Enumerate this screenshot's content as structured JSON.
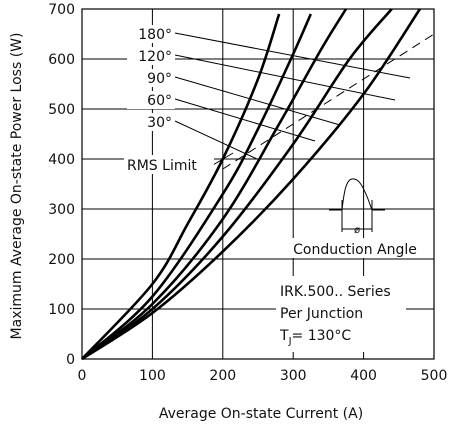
{
  "chart_data": {
    "type": "line",
    "xlabel": "Average On-state Current (A)",
    "ylabel": "Maximum Average On-state Power Loss (W)",
    "xlim": [
      0,
      500
    ],
    "ylim": [
      0,
      700
    ],
    "xticks": [
      "0",
      "100",
      "200",
      "300",
      "400",
      "500"
    ],
    "yticks": [
      "0",
      "100",
      "200",
      "300",
      "400",
      "500",
      "600",
      "700"
    ],
    "grid": true,
    "series": [
      {
        "name": "180°",
        "x": [
          0,
          100,
          200,
          300,
          400,
          480
        ],
        "y": [
          0,
          92,
          215,
          360,
          530,
          700
        ]
      },
      {
        "name": "120°",
        "x": [
          0,
          100,
          200,
          300,
          380,
          440
        ],
        "y": [
          0,
          100,
          245,
          430,
          600,
          700
        ]
      },
      {
        "name": "90°",
        "x": [
          0,
          100,
          200,
          280,
          340,
          375
        ],
        "y": [
          0,
          110,
          280,
          470,
          620,
          700
        ]
      },
      {
        "name": "60°",
        "x": [
          0,
          100,
          200,
          250,
          300,
          325
        ],
        "y": [
          0,
          125,
          330,
          460,
          610,
          690
        ]
      },
      {
        "name": "30°",
        "x": [
          0,
          100,
          150,
          200,
          250,
          280
        ],
        "y": [
          0,
          150,
          270,
          400,
          560,
          690
        ]
      }
    ],
    "rms_limit": {
      "label": "RMS Limit",
      "x": [
        200,
        500
      ],
      "y": [
        380,
        650
      ]
    },
    "annotations": {
      "conduction_angle": "Conduction Angle",
      "phi": "ø",
      "device": "IRK.500.. Series",
      "junction": "Per Junction",
      "temp_t": "T",
      "temp_sub": "J",
      "temp_rest": "= 130°C"
    }
  }
}
